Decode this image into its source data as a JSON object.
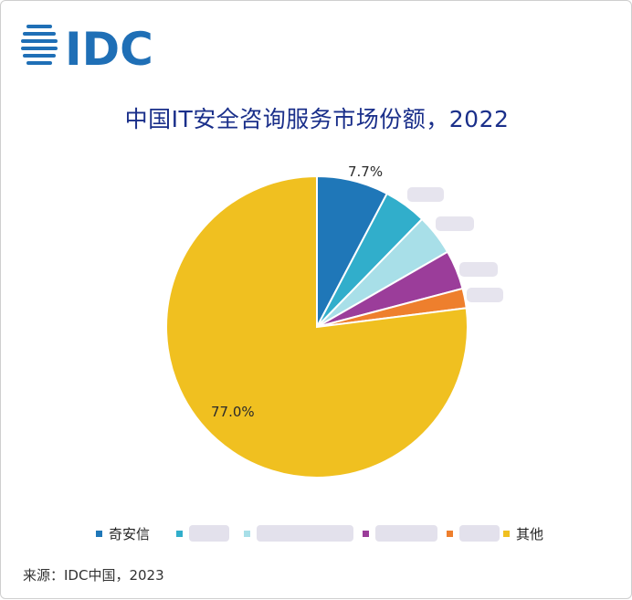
{
  "logo": {
    "text": "IDC",
    "color": "#1f6fb6"
  },
  "source": "来源：IDC中国，2023",
  "chart_data": {
    "type": "pie",
    "title": "中国IT安全咨询服务市场份额，2022",
    "start_angle_deg": 0,
    "direction": "clockwise",
    "legend_position": "bottom",
    "slices": [
      {
        "name": "奇安信",
        "value": 7.7,
        "color": "#1f77b8",
        "label": "7.7%"
      },
      {
        "name": "",
        "value": 4.6,
        "color": "#31aecb",
        "label": ""
      },
      {
        "name": "",
        "value": 4.4,
        "color": "#a8dfe8",
        "label": ""
      },
      {
        "name": "",
        "value": 4.2,
        "color": "#9b3d9a",
        "label": ""
      },
      {
        "name": "",
        "value": 2.1,
        "color": "#ee7f2d",
        "label": ""
      },
      {
        "name": "其他",
        "value": 77.0,
        "color": "#f0c020",
        "label": "77.0%"
      }
    ]
  }
}
